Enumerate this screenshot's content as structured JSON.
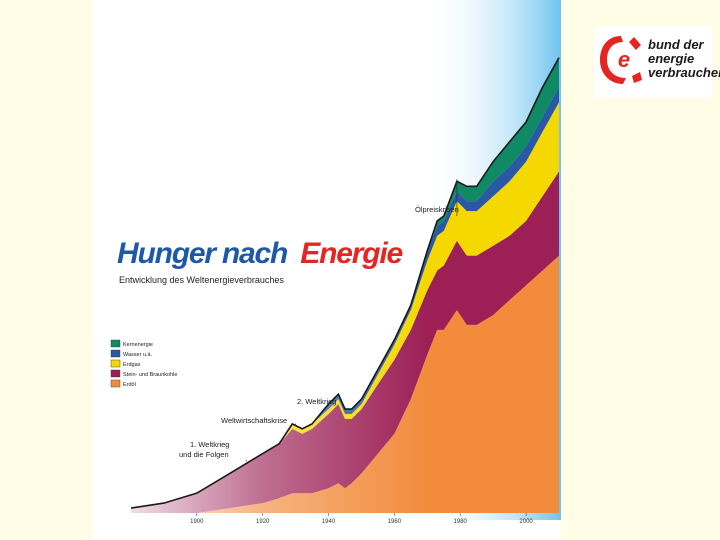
{
  "colors": {
    "page_bg": "#fffde6",
    "panel_bg": "#ffffff",
    "title_blue": "#1f58a8",
    "title_red": "#e52521",
    "sky_gradient_top": "#6fc4ef",
    "logo_red": "#e52521"
  },
  "logo": {
    "icon": "e-logo-icon",
    "line1": "bund der",
    "line2": "energie",
    "line3": "verbraucher"
  },
  "chart_data": {
    "type": "area",
    "stacked": true,
    "title_part1": "Hunger nach",
    "title_part2": "Energie",
    "subtitle": "Entwicklung des Weltenergieverbrauches",
    "xlabel": "",
    "ylabel": "",
    "x_ticks": [
      "1900",
      "1920",
      "1940",
      "1960",
      "1980",
      "2000"
    ],
    "xlim": [
      1880,
      2010
    ],
    "ylim": [
      0,
      100
    ],
    "x": [
      1880,
      1890,
      1900,
      1910,
      1920,
      1925,
      1929,
      1932,
      1935,
      1940,
      1943,
      1945,
      1947,
      1950,
      1955,
      1960,
      1965,
      1970,
      1973,
      1975,
      1979,
      1982,
      1985,
      1990,
      1995,
      2000,
      2005,
      2010
    ],
    "series": [
      {
        "name": "Erdöl",
        "color": "#f28b3c",
        "values": [
          0,
          0,
          0,
          1,
          2,
          3,
          4,
          4,
          4,
          5,
          6,
          5,
          6,
          8,
          12,
          16,
          23,
          32,
          37,
          37,
          41,
          38,
          38,
          40,
          43,
          46,
          49,
          52
        ]
      },
      {
        "name": "Stein- und Braunkohle",
        "color": "#9c1f55",
        "values": [
          1,
          2,
          4,
          7,
          10,
          11,
          13,
          12,
          13,
          15,
          16,
          14,
          13,
          13,
          14,
          15,
          14,
          13,
          12,
          13,
          14,
          14,
          14,
          14,
          13,
          13,
          15,
          17
        ]
      },
      {
        "name": "Erdgas",
        "color": "#f5d800",
        "values": [
          0,
          0,
          0,
          0,
          0,
          0,
          1,
          1,
          1,
          1,
          1,
          1,
          1,
          1,
          2,
          3,
          4,
          6,
          7,
          7,
          8,
          9,
          9,
          10,
          11,
          12,
          13,
          14
        ]
      },
      {
        "name": "Wasser u.ä.",
        "color": "#2a58a5",
        "values": [
          0,
          0,
          0,
          0,
          0,
          0,
          0,
          0,
          0,
          1,
          1,
          1,
          1,
          1,
          1,
          1,
          1,
          2,
          2,
          2,
          2,
          2,
          2,
          3,
          3,
          3,
          3,
          3
        ]
      },
      {
        "name": "Kernenergie",
        "color": "#0f8a64",
        "values": [
          0,
          0,
          0,
          0,
          0,
          0,
          0,
          0,
          0,
          0,
          0,
          0,
          0,
          0,
          0,
          0,
          0,
          0,
          1,
          1,
          2,
          3,
          3,
          4,
          5,
          5,
          6,
          6
        ]
      }
    ],
    "legend": {
      "placement": "left-middle",
      "entries": [
        "Kernenergie",
        "Wasser u.ä.",
        "Erdgas",
        "Stein- und Braunkohle",
        "Erdöl"
      ],
      "colors": [
        "#0f8a64",
        "#2a58a5",
        "#f5d800",
        "#9c1f55",
        "#f28b3c"
      ]
    },
    "annotations": [
      {
        "text": "1. Weltkrieg",
        "year": 1915
      },
      {
        "text": "und die Folgen",
        "year": 1915
      },
      {
        "text": "Weltwirtschaftskrise",
        "year": 1930
      },
      {
        "text": "2. Weltkrieg",
        "year": 1945
      },
      {
        "text": "Ölpreiskrisen",
        "year": 1979
      }
    ],
    "grid": false
  }
}
